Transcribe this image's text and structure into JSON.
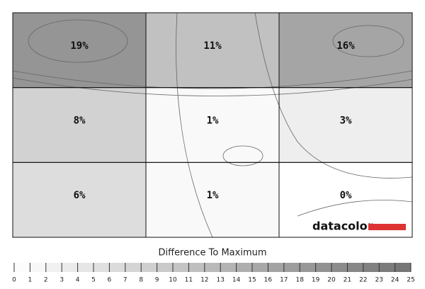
{
  "chart_data": {
    "type": "heatmap",
    "values": [
      [
        19,
        11,
        16
      ],
      [
        8,
        1,
        3
      ],
      [
        6,
        1,
        0
      ]
    ],
    "value_labels": [
      [
        "19%",
        "11%",
        "16%"
      ],
      [
        "8%",
        "1%",
        "3%"
      ],
      [
        "6%",
        "1%",
        "0%"
      ]
    ],
    "colorbar_title": "Difference To Maximum",
    "clim": [
      0,
      25
    ],
    "cticks": [
      0,
      1,
      2,
      3,
      4,
      5,
      6,
      7,
      8,
      9,
      10,
      11,
      12,
      13,
      14,
      15,
      16,
      17,
      18,
      19,
      20,
      21,
      22,
      23,
      24,
      25
    ],
    "brand": "datacolor"
  }
}
